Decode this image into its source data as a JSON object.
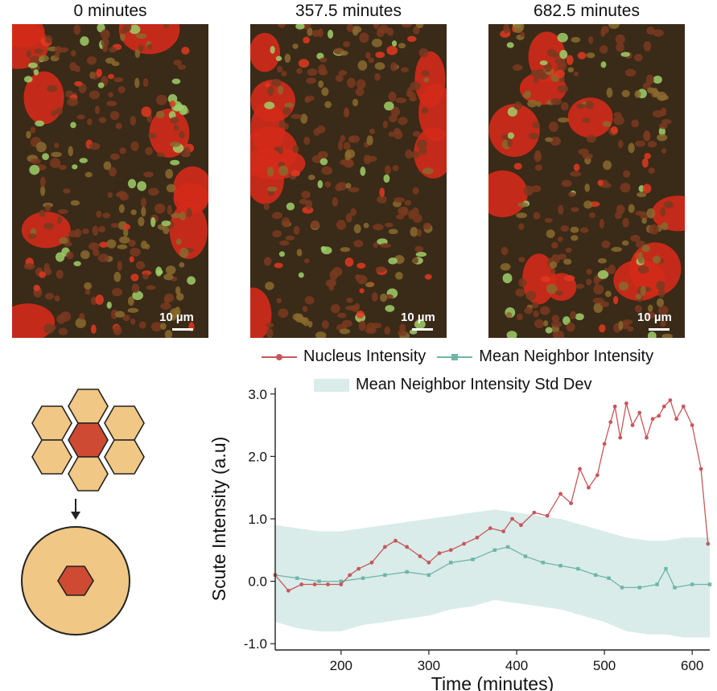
{
  "panels": [
    {
      "title": "0 minutes",
      "scale_label": "10 µm"
    },
    {
      "title": "357.5 minutes",
      "scale_label": "10 µm"
    },
    {
      "title": "682.5 minutes",
      "scale_label": "10 µm"
    }
  ],
  "colors": {
    "nucleus": "#c8575b",
    "neighbor": "#6fb5a8",
    "band": "#d9ece9",
    "cell_fill": "#f0c784",
    "cell_center": "#cf4a33"
  },
  "legend": {
    "nucleus": "Nucleus Intensity",
    "neighbor": "Mean Neighbor Intensity",
    "band": "Mean Neighbor Intensity Std Dev"
  },
  "chart_data": {
    "type": "line",
    "xlabel": "Time (minutes)",
    "ylabel": "Scute Intensity (a.u)",
    "xlim": [
      125,
      620
    ],
    "ylim": [
      -1.1,
      3.1
    ],
    "xticks": [
      200,
      300,
      400,
      500,
      600
    ],
    "yticks": [
      -1.0,
      0.0,
      1.0,
      2.0,
      3.0
    ],
    "ytick_labels": [
      "-1.0",
      "0.0",
      "1.0",
      "2.0",
      "3.0"
    ],
    "grid": false,
    "legend_position": "top",
    "series": [
      {
        "name": "Nucleus Intensity",
        "x": [
          125,
          140,
          155,
          170,
          185,
          200,
          210,
          220,
          235,
          250,
          262,
          275,
          290,
          300,
          312,
          325,
          340,
          355,
          370,
          385,
          395,
          405,
          420,
          435,
          450,
          462,
          472,
          482,
          492,
          500,
          507,
          512,
          518,
          525,
          532,
          540,
          548,
          555,
          562,
          568,
          575,
          582,
          590,
          600,
          610,
          618
        ],
        "values": [
          0.1,
          -0.15,
          -0.05,
          -0.05,
          -0.05,
          -0.05,
          0.1,
          0.2,
          0.3,
          0.55,
          0.65,
          0.55,
          0.4,
          0.3,
          0.45,
          0.5,
          0.6,
          0.7,
          0.85,
          0.8,
          1.0,
          0.9,
          1.1,
          1.05,
          1.4,
          1.25,
          1.8,
          1.5,
          1.7,
          2.2,
          2.55,
          2.8,
          2.3,
          2.85,
          2.5,
          2.7,
          2.3,
          2.6,
          2.65,
          2.8,
          2.9,
          2.6,
          2.8,
          2.5,
          1.8,
          0.6
        ]
      },
      {
        "name": "Mean Neighbor Intensity",
        "x": [
          125,
          150,
          175,
          200,
          225,
          250,
          275,
          300,
          325,
          350,
          375,
          390,
          410,
          430,
          450,
          470,
          490,
          505,
          520,
          540,
          560,
          570,
          580,
          600,
          620
        ],
        "values": [
          0.1,
          0.05,
          0.0,
          0.0,
          0.05,
          0.1,
          0.15,
          0.1,
          0.3,
          0.35,
          0.5,
          0.55,
          0.4,
          0.3,
          0.25,
          0.2,
          0.1,
          0.05,
          -0.1,
          -0.1,
          -0.05,
          0.2,
          -0.1,
          -0.05,
          -0.05
        ]
      }
    ],
    "band": {
      "name": "Mean Neighbor Intensity Std Dev",
      "x": [
        125,
        150,
        175,
        200,
        225,
        250,
        275,
        300,
        325,
        350,
        375,
        400,
        425,
        450,
        475,
        500,
        525,
        550,
        570,
        590,
        620
      ],
      "upper": [
        0.9,
        0.85,
        0.8,
        0.8,
        0.85,
        0.9,
        0.95,
        1.0,
        1.05,
        1.1,
        1.15,
        1.1,
        1.05,
        1.0,
        0.9,
        0.8,
        0.7,
        0.65,
        0.65,
        0.7,
        0.7
      ],
      "lower": [
        -0.65,
        -0.75,
        -0.8,
        -0.8,
        -0.7,
        -0.65,
        -0.6,
        -0.55,
        -0.45,
        -0.4,
        -0.3,
        -0.35,
        -0.4,
        -0.45,
        -0.55,
        -0.65,
        -0.8,
        -0.85,
        -0.85,
        -0.9,
        -0.9
      ]
    }
  }
}
